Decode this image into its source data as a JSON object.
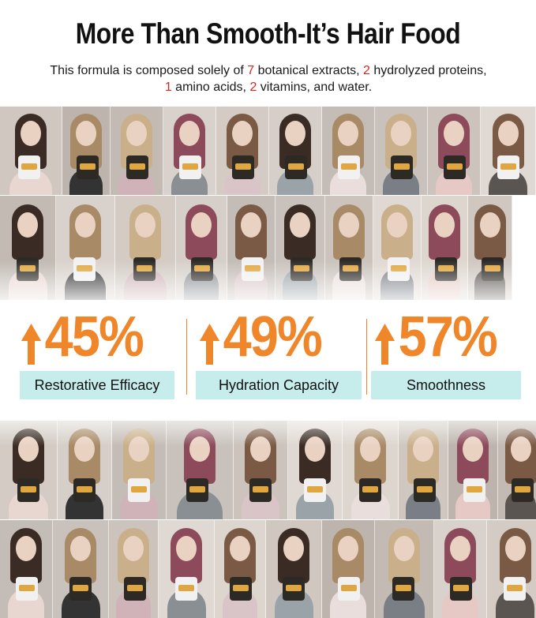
{
  "header": {
    "title": "More Than Smooth-It’s Hair Food",
    "line1_a": "This formula is composed solely of ",
    "n_botanical": "7",
    "line1_b": " botanical extracts, ",
    "n_proteins": "2",
    "line1_c": " hydrolyzed proteins,",
    "n_amino": "1",
    "line2_a": " amino acids, ",
    "n_vitamins": "2",
    "line2_b": " vitamins, and water."
  },
  "stats": [
    {
      "value": "45%",
      "label": "Restorative Efficacy"
    },
    {
      "value": "49%",
      "label": "Hydration Capacity"
    },
    {
      "value": "57%",
      "label": "Smoothness"
    }
  ],
  "colors": {
    "accent_orange": "#f0862a",
    "highlight_red": "#d7261e",
    "label_bg": "#c7ecec"
  },
  "icons": {
    "stat_arrow": "up-arrow-icon"
  }
}
